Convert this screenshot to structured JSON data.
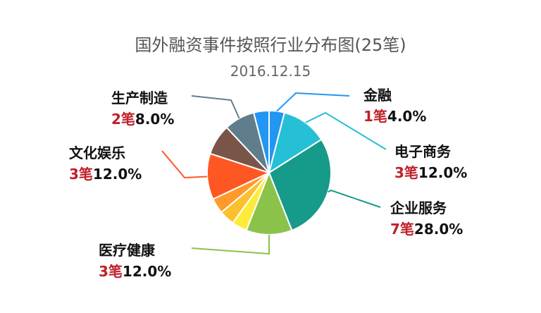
{
  "chart_data": {
    "type": "pie",
    "title": "国外融资事件按照行业分布图(25笔)",
    "subtitle": "2016.12.15",
    "unit": "笔",
    "slices": [
      {
        "name": "金融",
        "count": 1,
        "percent": "4.0%",
        "value": 4.0,
        "color": "#2196f3"
      },
      {
        "name": "电子商务",
        "count": 3,
        "percent": "12.0%",
        "value": 12.0,
        "color": "#26c0d6"
      },
      {
        "name": "企业服务",
        "count": 7,
        "percent": "28.0%",
        "value": 28.0,
        "color": "#169a8a"
      },
      {
        "name": "",
        "count": 3,
        "percent": "12.0%",
        "value": 12.0,
        "color": "#8bc34a"
      },
      {
        "name": "",
        "count": 1,
        "percent": "",
        "value": 4.0,
        "color": "#fdeb3b"
      },
      {
        "name": "",
        "count": 1,
        "percent": "",
        "value": 4.0,
        "color": "#fbc02d"
      },
      {
        "name": "",
        "count": 1,
        "percent": "",
        "value": 4.0,
        "color": "#ff9a2a"
      },
      {
        "name": "文化娱乐",
        "count": 3,
        "percent": "12.0%",
        "value": 12.0,
        "color": "#ff5722"
      },
      {
        "name": "",
        "count": 2,
        "percent": "",
        "value": 8.0,
        "color": "#795548"
      },
      {
        "name": "生产制造",
        "count": 2,
        "percent": "8.0%",
        "value": 8.0,
        "color": "#607d8b"
      },
      {
        "name": "",
        "count": 1,
        "percent": "",
        "value": 4.0,
        "color": "#2196f3"
      }
    ],
    "labels": [
      {
        "name": "金融",
        "count": "1",
        "pct": "4.0%",
        "slice": 0
      },
      {
        "name": "电子商务",
        "count": "3",
        "pct": "12.0%",
        "slice": 1
      },
      {
        "name": "企业服务",
        "count": "7",
        "pct": "28.0%",
        "slice": 2
      },
      {
        "name": "医疗健康",
        "count": "3",
        "pct": "12.0%",
        "slice": 3
      },
      {
        "name": "文化娱乐",
        "count": "3",
        "pct": "12.0%",
        "slice": 7
      },
      {
        "name": "生产制造",
        "count": "2",
        "pct": "8.0%",
        "slice": 9
      }
    ]
  }
}
